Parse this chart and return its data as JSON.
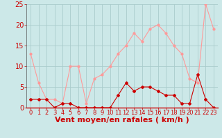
{
  "hours": [
    0,
    1,
    2,
    3,
    4,
    5,
    6,
    7,
    8,
    9,
    10,
    11,
    12,
    13,
    14,
    15,
    16,
    17,
    18,
    19,
    20,
    21,
    22,
    23
  ],
  "vent_moyen": [
    2,
    2,
    2,
    0,
    1,
    1,
    0,
    0,
    0,
    0,
    0,
    3,
    6,
    4,
    5,
    5,
    4,
    3,
    3,
    1,
    1,
    8,
    2,
    0
  ],
  "rafales": [
    13,
    6,
    2,
    2,
    1,
    10,
    10,
    1,
    7,
    8,
    10,
    13,
    15,
    18,
    16,
    19,
    20,
    18,
    15,
    13,
    7,
    6,
    25,
    19
  ],
  "ylim": [
    0,
    25
  ],
  "xlim": [
    -0.5,
    23.5
  ],
  "yticks": [
    0,
    5,
    10,
    15,
    20,
    25
  ],
  "xticks": [
    0,
    1,
    2,
    3,
    4,
    5,
    6,
    7,
    8,
    9,
    10,
    11,
    12,
    13,
    14,
    15,
    16,
    17,
    18,
    19,
    20,
    21,
    22,
    23
  ],
  "xlabel": "Vent moyen/en rafales ( km/h )",
  "bg_color": "#cce8e8",
  "grid_color": "#aacccc",
  "line_color_moyen": "#cc0000",
  "line_color_rafales": "#ff9999",
  "xlabel_color": "#cc0000",
  "tick_color": "#cc0000",
  "xlabel_fontsize": 8,
  "ytick_fontsize": 7,
  "xtick_fontsize": 6
}
